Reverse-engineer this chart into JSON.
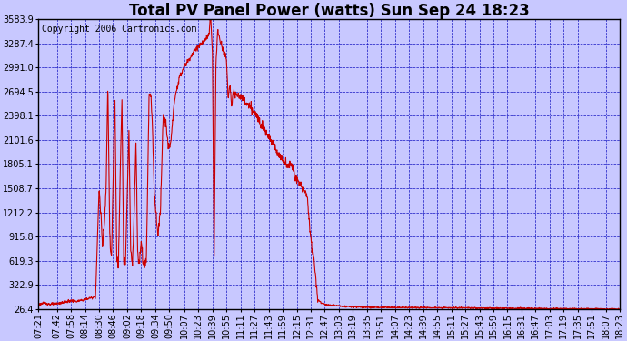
{
  "title": "Total PV Panel Power (watts) Sun Sep 24 18:23",
  "copyright": "Copyright 2006 Cartronics.com",
  "background_color": "#c8c8ff",
  "plot_bg_color": "#c8c8ff",
  "line_color": "#cc0000",
  "grid_color": "#0000bb",
  "border_color": "#000000",
  "y_ticks": [
    26.4,
    322.9,
    619.3,
    915.8,
    1212.2,
    1508.7,
    1805.1,
    2101.6,
    2398.1,
    2694.5,
    2991.0,
    3287.4,
    3583.9
  ],
  "ylim": [
    26.4,
    3583.9
  ],
  "x_labels": [
    "07:21",
    "07:42",
    "07:58",
    "08:14",
    "08:30",
    "08:46",
    "09:02",
    "09:18",
    "09:34",
    "09:50",
    "10:07",
    "10:23",
    "10:39",
    "10:55",
    "11:11",
    "11:27",
    "11:43",
    "11:59",
    "12:15",
    "12:31",
    "12:47",
    "13:03",
    "13:19",
    "13:35",
    "13:51",
    "14:07",
    "14:23",
    "14:39",
    "14:55",
    "15:11",
    "15:27",
    "15:43",
    "15:59",
    "16:15",
    "16:31",
    "16:47",
    "17:03",
    "17:19",
    "17:35",
    "17:51",
    "18:07",
    "18:23"
  ],
  "title_fontsize": 12,
  "copyright_fontsize": 7,
  "tick_fontsize": 7
}
